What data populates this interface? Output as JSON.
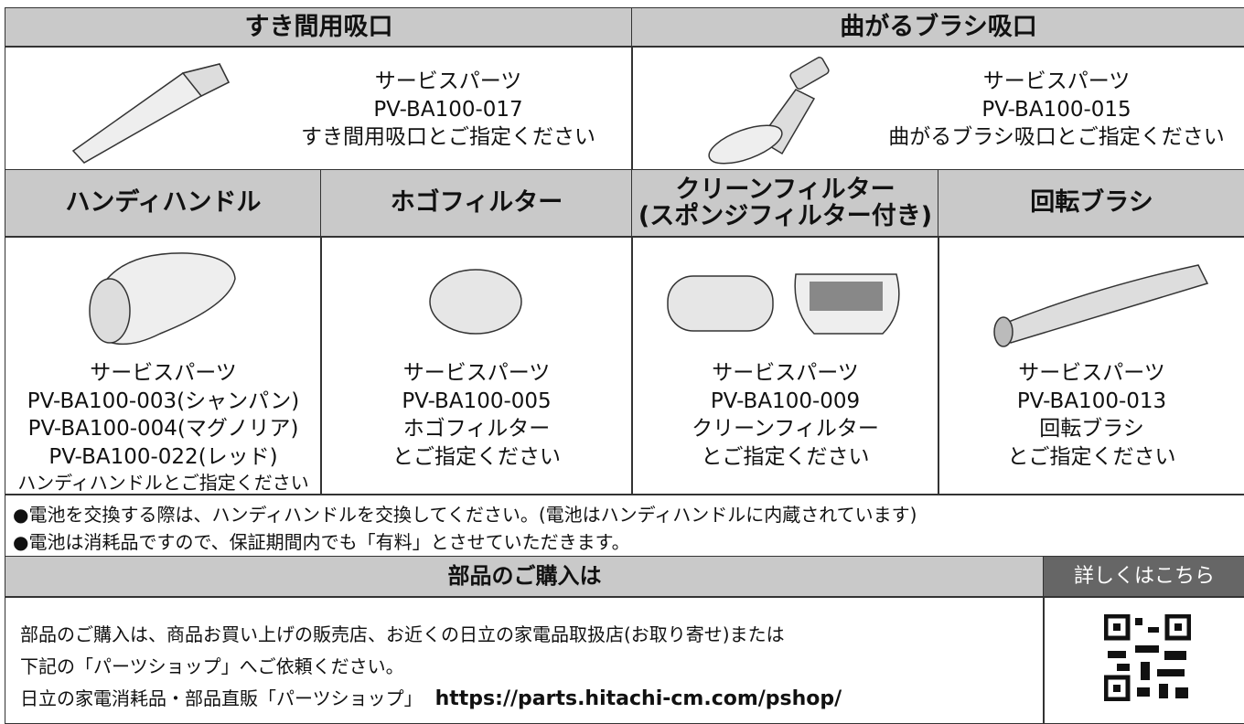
{
  "sections": [
    {
      "title": "すき間用吸口",
      "lines": [
        "サービスパーツ",
        "PV-BA100-017",
        "すき間用吸口とご指定ください"
      ]
    },
    {
      "title": "曲がるブラシ吸口",
      "lines": [
        "サービスパーツ",
        "PV-BA100-015",
        "曲がるブラシ吸口とご指定ください"
      ]
    }
  ],
  "parts": [
    {
      "title": [
        "ハンディハンドル"
      ],
      "lines": [
        "サービスパーツ",
        "PV-BA100-003(シャンパン)",
        "PV-BA100-004(マグノリア)",
        "PV-BA100-022(レッド)",
        "ハンディハンドルとご指定ください"
      ]
    },
    {
      "title": [
        "ホゴフィルター"
      ],
      "lines": [
        "サービスパーツ",
        "PV-BA100-005",
        "ホゴフィルター",
        "とご指定ください"
      ]
    },
    {
      "title": [
        "クリーンフィルター",
        "(スポンジフィルター付き)"
      ],
      "lines": [
        "サービスパーツ",
        "PV-BA100-009",
        "クリーンフィルター",
        "とご指定ください"
      ]
    },
    {
      "title": [
        "回転ブラシ"
      ],
      "lines": [
        "サービスパーツ",
        "PV-BA100-013",
        "回転ブラシ",
        "とご指定ください"
      ]
    }
  ],
  "notes": [
    "●電池を交換する際は、ハンディハンドルを交換してください。(電池はハンディハンドルに内蔵されています)",
    "●電池は消耗品ですので、保証期間内でも「有料」とさせていただきます。"
  ],
  "purchase": {
    "title": "部品のご購入は",
    "link_label": "詳しくはこちら",
    "lines": [
      "部品のご購入は、商品お買い上げの販売店、お近くの日立の家電品取扱店(お取り寄せ)または",
      "下記の「パーツショップ」へご依頼ください。"
    ],
    "shop_name": "日立の家電消耗品・部品直販「パーツショップ」",
    "url": "https://parts.hitachi-cm.com/pshop/"
  }
}
